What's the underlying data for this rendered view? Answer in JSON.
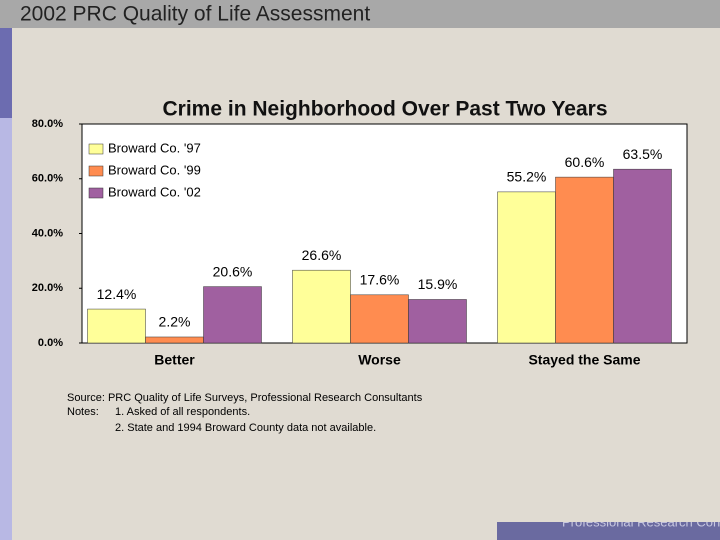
{
  "header": {
    "title": "2002 PRC Quality of Life Assessment"
  },
  "chart_data": {
    "type": "bar",
    "title": "Crime in Neighborhood Over Past Two Years",
    "categories": [
      "Better",
      "Worse",
      "Stayed the Same"
    ],
    "series": [
      {
        "name": "Broward Co. '97",
        "color": "#ffff99",
        "values": [
          12.4,
          26.6,
          55.2
        ],
        "value_labels": [
          "12.4%",
          "26.6%",
          "55.2%"
        ]
      },
      {
        "name": "Broward Co. '99",
        "color": "#ff8c50",
        "values": [
          2.2,
          17.6,
          60.6
        ],
        "value_labels": [
          "2.2%",
          "17.6%",
          "60.6%"
        ]
      },
      {
        "name": "Broward Co. '02",
        "color": "#a060a0",
        "values": [
          20.6,
          15.9,
          63.5
        ],
        "value_labels": [
          "20.6%",
          "15.9%",
          "63.5%"
        ]
      }
    ],
    "ylim": [
      0,
      80
    ],
    "yticks": [
      {
        "value": 0,
        "label": "0.0%"
      },
      {
        "value": 20,
        "label": "20.0%"
      },
      {
        "value": 40,
        "label": "40.0%"
      },
      {
        "value": 60,
        "label": "60.0%"
      },
      {
        "value": 80,
        "label": "80.0%"
      }
    ],
    "legend": "top-left",
    "notes": {
      "source": "Source: PRC Quality of Life Surveys, Professional Research Consultants",
      "notes_label": "Notes:",
      "items": [
        "1. Asked of all respondents.",
        "2. State and 1994 Broward County data not available."
      ]
    }
  },
  "footer": {
    "brand": "Professional Research Consultants"
  }
}
